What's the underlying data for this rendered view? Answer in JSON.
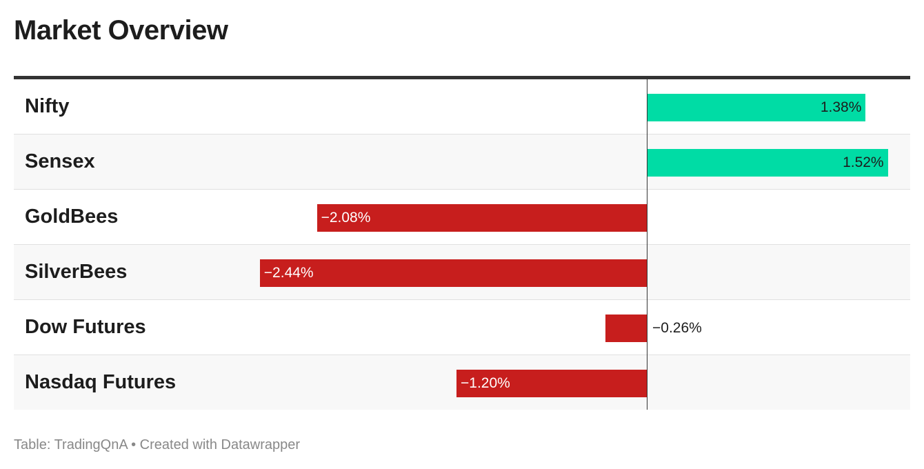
{
  "title": "Market Overview",
  "footer": "Table: TradingQnA • Created with Datawrapper",
  "colors": {
    "positive": "#00dca5",
    "negative": "#c71e1d",
    "text": "#1d1d1d"
  },
  "chart_data": {
    "type": "bar",
    "orientation": "horizontal",
    "categories": [
      "Nifty",
      "Sensex",
      "GoldBees",
      "SilverBees",
      "Dow Futures",
      "Nasdaq Futures"
    ],
    "values": [
      1.38,
      1.52,
      -2.08,
      -2.44,
      -0.26,
      -1.2
    ],
    "value_labels": [
      "1.38%",
      "1.52%",
      "−2.08%",
      "−2.44%",
      "−0.26%",
      "−1.20%"
    ],
    "unit": "%",
    "xlim": [
      -4.0,
      1.652
    ],
    "title": "Market Overview",
    "grid": false
  }
}
